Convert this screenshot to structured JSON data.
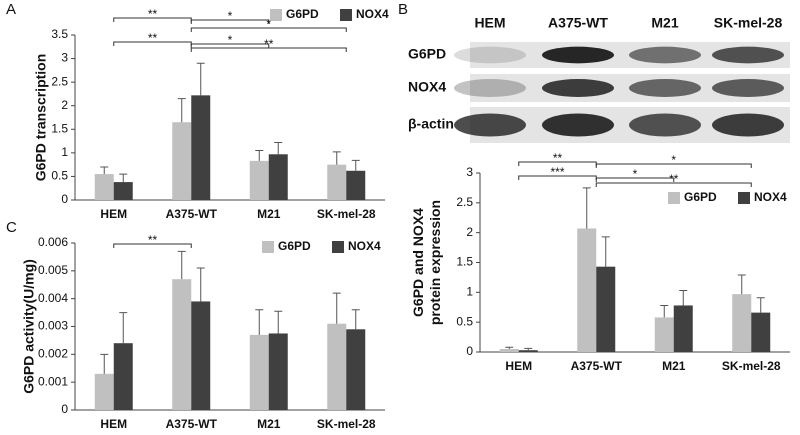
{
  "chart_data": [
    {
      "type": "bar",
      "panel": "A",
      "ylabel": "G6PD transcription",
      "categories": [
        "HEM",
        "A375-WT",
        "M21",
        "SK-mel-28"
      ],
      "series": [
        {
          "name": "G6PD",
          "color": "#c0c0c0",
          "values": [
            0.55,
            1.65,
            0.83,
            0.75
          ],
          "errors": [
            0.15,
            0.5,
            0.22,
            0.27
          ]
        },
        {
          "name": "NOX4",
          "color": "#404040",
          "values": [
            0.38,
            2.22,
            0.97,
            0.62
          ],
          "errors": [
            0.17,
            0.68,
            0.25,
            0.22
          ]
        }
      ],
      "ylim": [
        0,
        3.5
      ],
      "yticks": [
        0,
        0.5,
        1,
        1.5,
        2,
        2.5,
        3,
        3.5
      ],
      "annotations": [
        "**",
        "*",
        "*",
        "**",
        "*",
        "**"
      ]
    },
    {
      "type": "bar",
      "panel": "B",
      "ylabel": [
        "G6PD and NOX4",
        "protein expression"
      ],
      "categories": [
        "HEM",
        "A375-WT",
        "M21",
        "SK-mel-28"
      ],
      "series": [
        {
          "name": "G6PD",
          "color": "#c0c0c0",
          "values": [
            0.05,
            2.07,
            0.58,
            0.97
          ],
          "errors": [
            0.03,
            0.68,
            0.2,
            0.32
          ]
        },
        {
          "name": "NOX4",
          "color": "#404040",
          "values": [
            0.03,
            1.43,
            0.78,
            0.66
          ],
          "errors": [
            0.03,
            0.5,
            0.25,
            0.25
          ]
        }
      ],
      "ylim": [
        0,
        3
      ],
      "yticks": [
        0,
        0.5,
        1,
        1.5,
        2,
        2.5,
        3
      ],
      "annotations": [
        "**",
        "*",
        "***",
        "*",
        "**"
      ]
    },
    {
      "type": "bar",
      "panel": "C",
      "ylabel": "G6PD activity(U/mg)",
      "categories": [
        "HEM",
        "A375-WT",
        "M21",
        "SK-mel-28"
      ],
      "series": [
        {
          "name": "G6PD",
          "color": "#c0c0c0",
          "values": [
            0.0013,
            0.0047,
            0.0027,
            0.0031
          ],
          "errors": [
            0.0007,
            0.001,
            0.0009,
            0.0011
          ]
        },
        {
          "name": "NOX4",
          "color": "#404040",
          "values": [
            0.0024,
            0.0039,
            0.00275,
            0.0029
          ],
          "errors": [
            0.0011,
            0.0012,
            0.0008,
            0.0007
          ]
        }
      ],
      "ylim": [
        0,
        0.006
      ],
      "yticks": [
        0,
        0.001,
        0.002,
        0.003,
        0.004,
        0.005,
        0.006
      ],
      "annotations": [
        "**"
      ]
    }
  ],
  "blot": {
    "columns": [
      "HEM",
      "A375-WT",
      "M21",
      "SK-mel-28"
    ],
    "rows": [
      "G6PD",
      "NOX4",
      "β-actin"
    ]
  }
}
